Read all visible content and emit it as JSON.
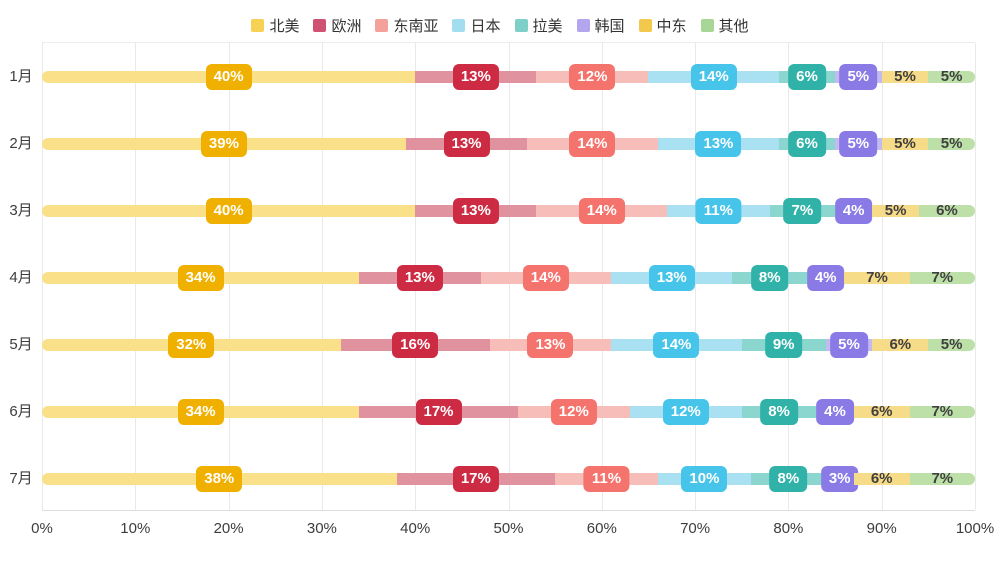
{
  "chart_data": {
    "type": "bar",
    "variant": "horizontal-stacked",
    "title": "",
    "legend_position": "top",
    "grid": true,
    "value_suffix": "%",
    "categories": [
      "1月",
      "2月",
      "3月",
      "4月",
      "5月",
      "6月",
      "7月"
    ],
    "series": [
      {
        "name": "北美",
        "values": [
          40,
          39,
          40,
          34,
          32,
          34,
          38
        ],
        "bar_color": "#FBE08A",
        "badge_color": "#F0B000",
        "legend_color": "#F7D154",
        "label_style": "badge"
      },
      {
        "name": "欧洲",
        "values": [
          13,
          13,
          13,
          13,
          16,
          17,
          17
        ],
        "bar_color": "#E0939E",
        "badge_color": "#CC2B43",
        "legend_color": "#CF5272",
        "label_style": "badge"
      },
      {
        "name": "东南亚",
        "values": [
          12,
          14,
          14,
          14,
          13,
          12,
          11
        ],
        "bar_color": "#F7BDB8",
        "badge_color": "#F4736C",
        "legend_color": "#F5A19B",
        "label_style": "badge"
      },
      {
        "name": "日本",
        "values": [
          14,
          13,
          11,
          13,
          14,
          12,
          10
        ],
        "bar_color": "#A9E1F2",
        "badge_color": "#47C4E9",
        "legend_color": "#A3DEF0",
        "label_style": "badge"
      },
      {
        "name": "拉美",
        "values": [
          6,
          6,
          7,
          8,
          9,
          8,
          8
        ],
        "bar_color": "#8BD6CF",
        "badge_color": "#30B2A8",
        "legend_color": "#7ECFC8",
        "label_style": "badge"
      },
      {
        "name": "韩国",
        "values": [
          5,
          5,
          4,
          4,
          5,
          4,
          3
        ],
        "bar_color": "#C4BAF2",
        "badge_color": "#8A7AE6",
        "legend_color": "#B3A6EF",
        "label_style": "badge"
      },
      {
        "name": "中东",
        "values": [
          5,
          5,
          5,
          7,
          6,
          6,
          6
        ],
        "bar_color": "#F6DB88",
        "badge_color": "#F6DB88",
        "legend_color": "#F2C94C",
        "label_style": "text"
      },
      {
        "name": "其他",
        "values": [
          5,
          5,
          6,
          7,
          5,
          7,
          7
        ],
        "bar_color": "#BCE0A8",
        "badge_color": "#BCE0A8",
        "legend_color": "#A8D696",
        "label_style": "text"
      }
    ],
    "x_axis": {
      "min": 0,
      "max": 100,
      "ticks": [
        "0%",
        "10%",
        "20%",
        "30%",
        "40%",
        "50%",
        "60%",
        "70%",
        "80%",
        "90%",
        "100%"
      ]
    }
  }
}
